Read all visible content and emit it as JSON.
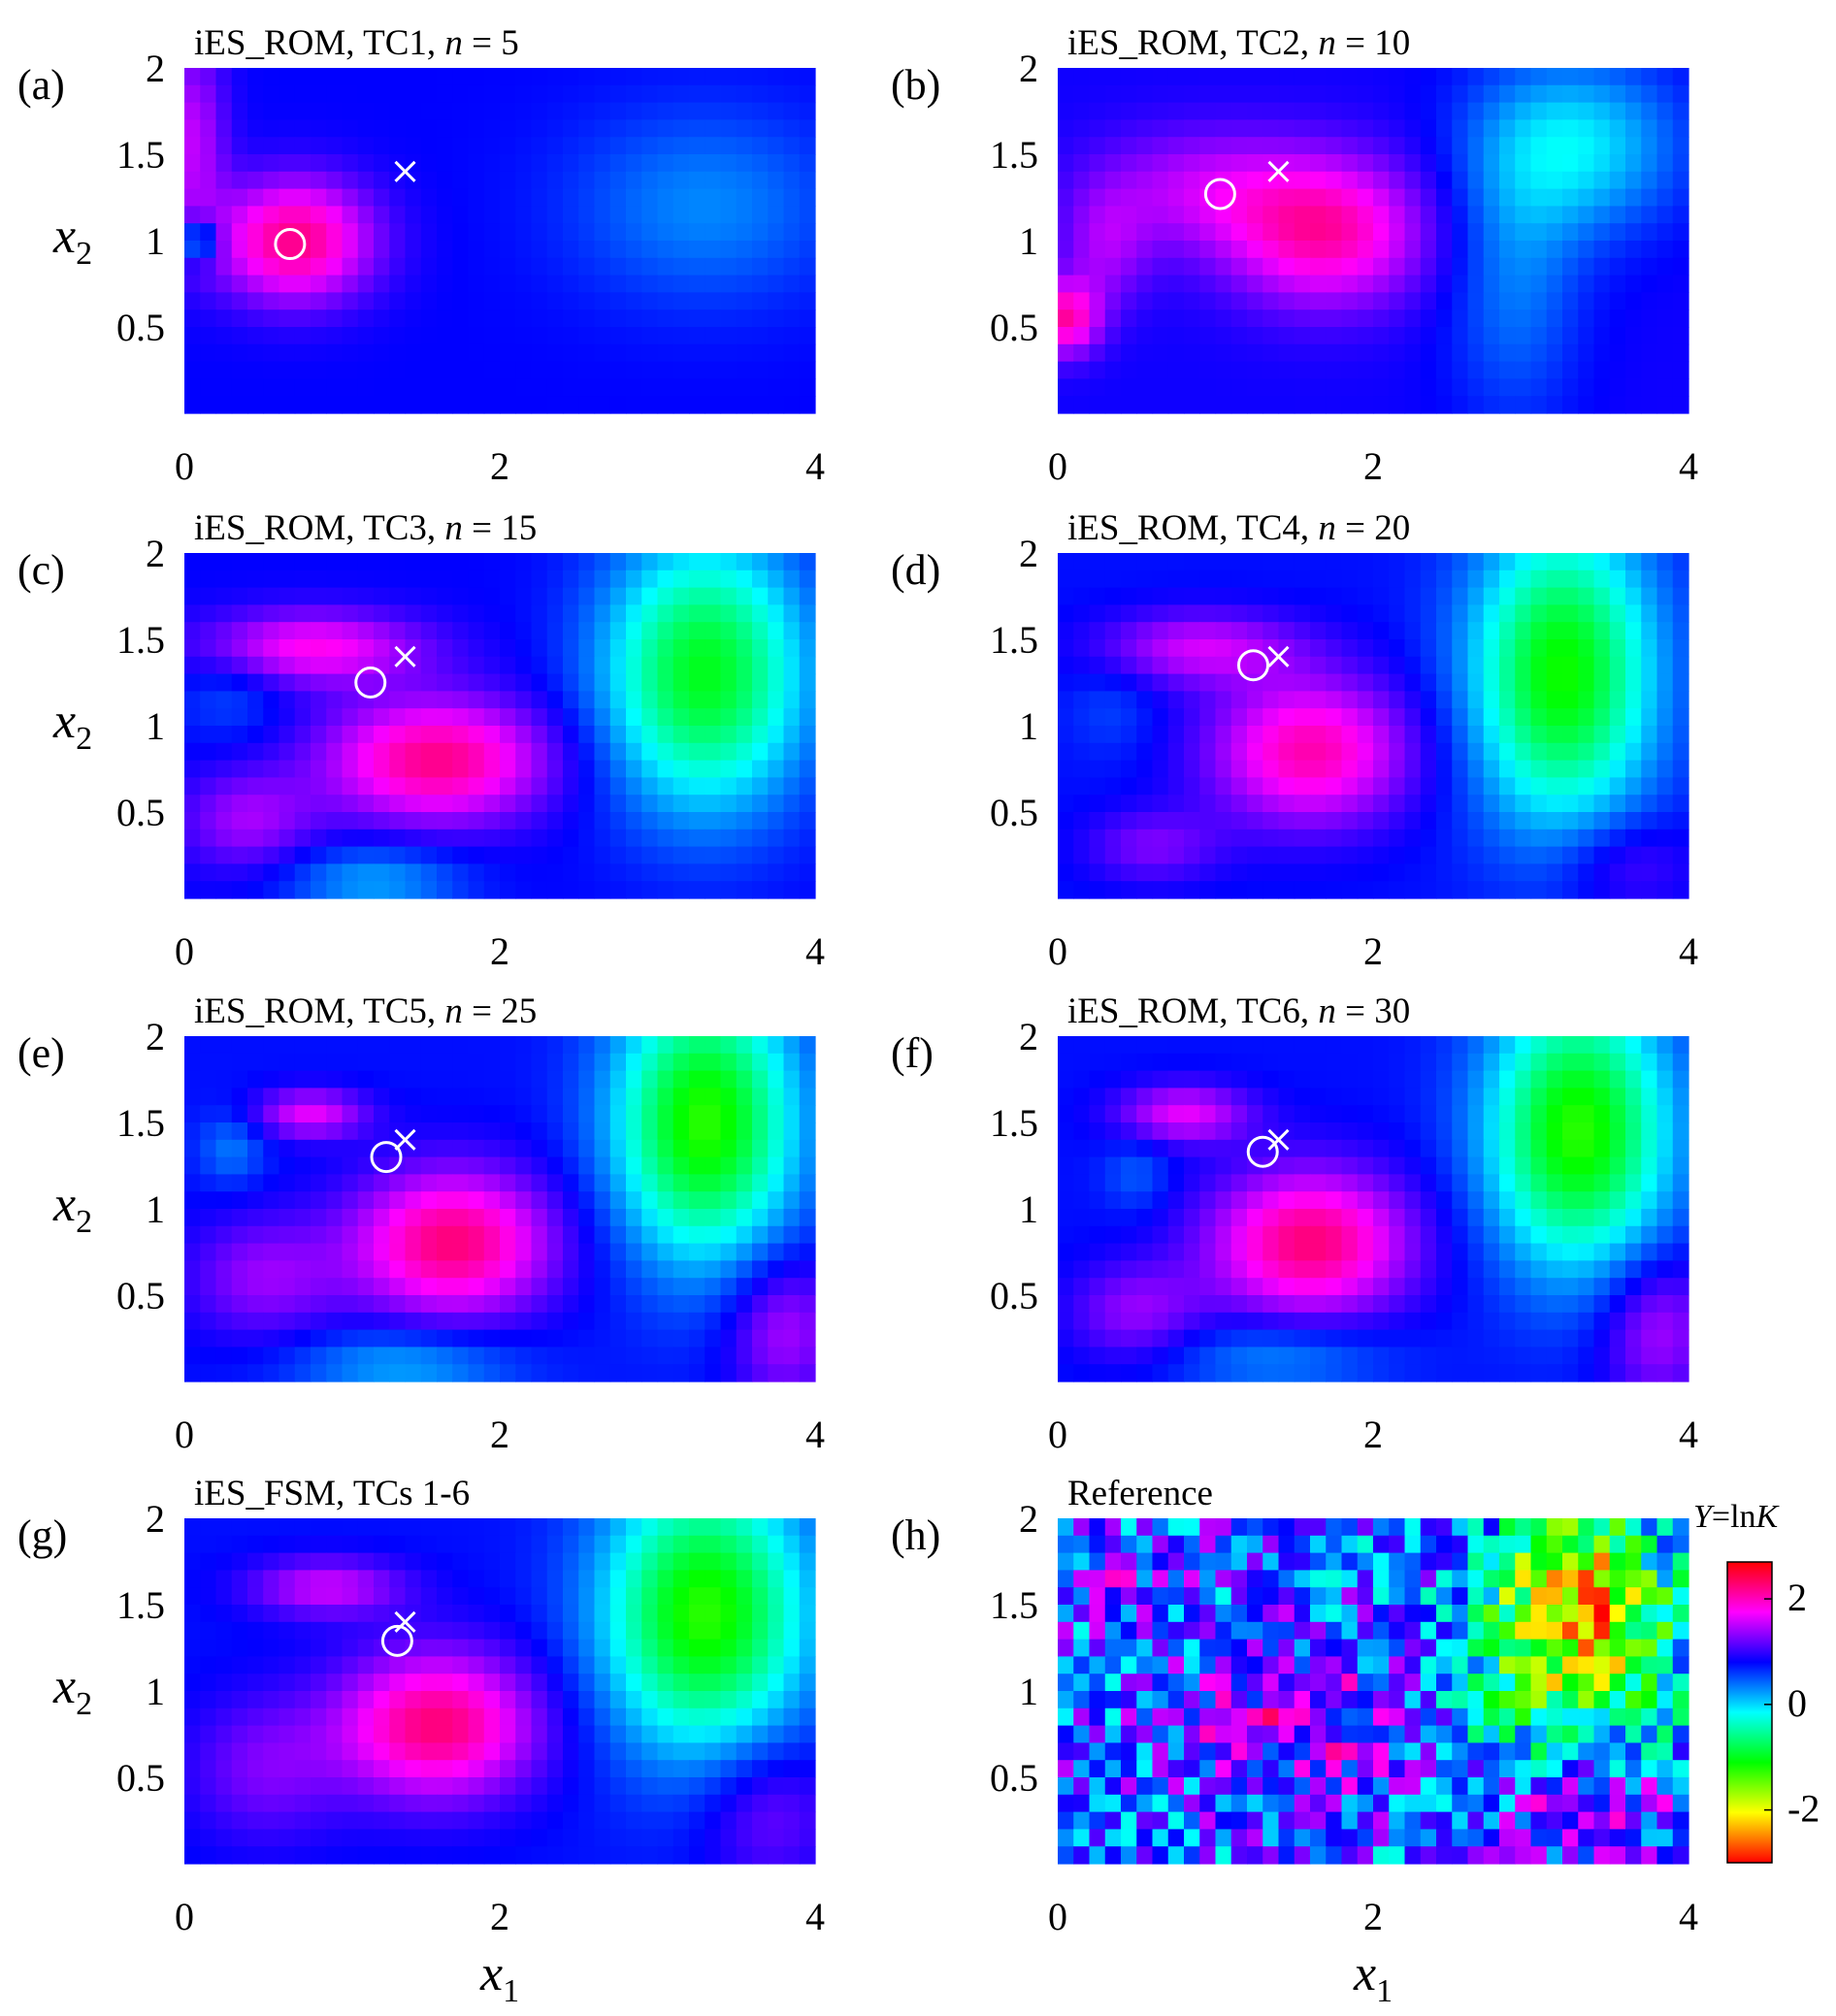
{
  "chart_data": {
    "type": "heatmap",
    "x_range": [
      0,
      4
    ],
    "y_range": [
      0,
      2
    ],
    "x_ticks": [
      0,
      2,
      4
    ],
    "y_ticks": [
      0.5,
      1,
      1.5,
      2
    ],
    "x_tick_labels": [
      "0",
      "2",
      "4"
    ],
    "y_tick_labels": [
      "0.5",
      "1",
      "1.5",
      "2"
    ],
    "xlabel": "x",
    "xlabel_sub": "1",
    "ylabel": "x",
    "ylabel_sub": "2",
    "grid": "off",
    "colorbar": {
      "title_var": "Y",
      "title_eq": "=ln",
      "title_k": "K",
      "range": [
        -3,
        2.7
      ],
      "ticks": [
        2,
        0,
        -2
      ],
      "tick_labels": [
        "2",
        "0",
        "-2"
      ],
      "colormap": [
        "#ff0000",
        "#ffff00",
        "#00ff00",
        "#00ffff",
        "#0000ff",
        "#ff00ff",
        "#ff0000"
      ]
    },
    "true_point": {
      "x1": 1.4,
      "x2": 1.4,
      "marker": "cross"
    },
    "panels": [
      {
        "label": "(a)",
        "title_pre": "iES_ROM, TC1, ",
        "title_n": "n",
        "title_post": " = 5",
        "estimate": {
          "x1": 0.67,
          "x2": 0.98
        },
        "field": "a"
      },
      {
        "label": "(b)",
        "title_pre": "iES_ROM, TC2, ",
        "title_n": "n",
        "title_post": " = 10",
        "estimate": {
          "x1": 1.03,
          "x2": 1.27
        },
        "field": "b"
      },
      {
        "label": "(c)",
        "title_pre": "iES_ROM, TC3, ",
        "title_n": "n",
        "title_post": " = 15",
        "estimate": {
          "x1": 1.18,
          "x2": 1.25
        },
        "field": "c"
      },
      {
        "label": "(d)",
        "title_pre": "iES_ROM, TC4, ",
        "title_n": "n",
        "title_post": " = 20",
        "estimate": {
          "x1": 1.24,
          "x2": 1.35
        },
        "field": "d"
      },
      {
        "label": "(e)",
        "title_pre": "iES_ROM, TC5, ",
        "title_n": "n",
        "title_post": " = 25",
        "estimate": {
          "x1": 1.28,
          "x2": 1.3
        },
        "field": "e"
      },
      {
        "label": "(f)",
        "title_pre": "iES_ROM, TC6, ",
        "title_n": "n",
        "title_post": " = 30",
        "estimate": {
          "x1": 1.3,
          "x2": 1.33
        },
        "field": "f"
      },
      {
        "label": "(g)",
        "title_pre": "iES_FSM, TCs 1-6",
        "title_n": "",
        "title_post": "",
        "estimate": {
          "x1": 1.35,
          "x2": 1.29
        },
        "field": "g"
      },
      {
        "label": "(h)",
        "title_pre": "Reference",
        "title_n": "",
        "title_post": "",
        "estimate": null,
        "field": "ref"
      }
    ],
    "fields": {
      "a": {
        "base": 0.8,
        "blobs": [
          [
            0.7,
            1.0,
            0.35,
            0.25,
            1.4
          ],
          [
            0.1,
            1.0,
            0.08,
            0.08,
            -1.0
          ],
          [
            3.3,
            1.2,
            0.6,
            0.4,
            -0.5
          ],
          [
            0.05,
            1.6,
            0.15,
            0.4,
            0.7
          ]
        ]
      },
      "b": {
        "base": 0.85,
        "blobs": [
          [
            1.7,
            1.05,
            0.45,
            0.3,
            1.2
          ],
          [
            0.9,
            1.3,
            0.5,
            0.25,
            0.6
          ],
          [
            3.3,
            1.55,
            0.45,
            0.35,
            -0.9
          ],
          [
            2.9,
            0.8,
            0.3,
            0.6,
            -0.5
          ],
          [
            0.05,
            0.55,
            0.15,
            0.15,
            1.2
          ],
          [
            0.3,
            0.95,
            0.2,
            0.25,
            0.5
          ]
        ]
      },
      "c": {
        "base": 0.8,
        "blobs": [
          [
            1.6,
            0.8,
            0.5,
            0.25,
            1.4
          ],
          [
            0.8,
            1.45,
            0.5,
            0.15,
            1.0
          ],
          [
            3.3,
            1.3,
            0.45,
            0.55,
            -1.8
          ],
          [
            0.4,
            0.45,
            0.3,
            0.2,
            0.6
          ],
          [
            0.3,
            1.2,
            0.25,
            0.2,
            -0.3
          ],
          [
            1.2,
            0.1,
            0.4,
            0.15,
            -0.6
          ]
        ]
      },
      "d": {
        "base": 0.75,
        "blobs": [
          [
            1.6,
            0.85,
            0.45,
            0.3,
            1.3
          ],
          [
            0.9,
            1.45,
            0.45,
            0.15,
            0.8
          ],
          [
            3.2,
            1.3,
            0.4,
            0.6,
            -1.9
          ],
          [
            0.6,
            0.3,
            0.3,
            0.15,
            0.5
          ],
          [
            0.35,
            1.1,
            0.2,
            0.2,
            -0.2
          ],
          [
            3.6,
            0.2,
            0.3,
            0.2,
            0.4
          ]
        ]
      },
      "e": {
        "base": 0.75,
        "blobs": [
          [
            1.7,
            0.8,
            0.45,
            0.3,
            1.5
          ],
          [
            0.8,
            1.55,
            0.25,
            0.1,
            0.9
          ],
          [
            3.3,
            1.5,
            0.4,
            0.55,
            -2.0
          ],
          [
            0.5,
            0.6,
            0.35,
            0.25,
            0.6
          ],
          [
            1.4,
            0.1,
            0.5,
            0.15,
            -0.6
          ],
          [
            3.8,
            0.3,
            0.25,
            0.3,
            0.7
          ],
          [
            0.3,
            1.35,
            0.15,
            0.15,
            -0.4
          ]
        ]
      },
      "f": {
        "base": 0.75,
        "blobs": [
          [
            1.6,
            0.8,
            0.45,
            0.3,
            1.5
          ],
          [
            0.8,
            1.55,
            0.3,
            0.12,
            0.9
          ],
          [
            3.3,
            1.45,
            0.4,
            0.55,
            -2.0
          ],
          [
            0.5,
            0.4,
            0.3,
            0.2,
            0.6
          ],
          [
            1.4,
            0.15,
            0.5,
            0.15,
            -0.5
          ],
          [
            3.8,
            0.3,
            0.25,
            0.3,
            0.7
          ],
          [
            0.5,
            1.2,
            0.15,
            0.15,
            -0.3
          ]
        ]
      },
      "g": {
        "base": 0.75,
        "blobs": [
          [
            1.6,
            0.8,
            0.45,
            0.3,
            1.5
          ],
          [
            0.9,
            1.6,
            0.35,
            0.12,
            0.8
          ],
          [
            3.3,
            1.45,
            0.45,
            0.55,
            -2.0
          ],
          [
            0.5,
            0.55,
            0.35,
            0.3,
            0.5
          ],
          [
            3.7,
            0.3,
            0.3,
            0.3,
            0.5
          ]
        ]
      },
      "ref": {
        "base": 0.6,
        "noise": 0.9,
        "seed": 7,
        "blobs": [
          [
            1.5,
            0.8,
            0.5,
            0.3,
            0.9
          ],
          [
            3.3,
            1.6,
            0.4,
            0.35,
            -2.6
          ],
          [
            3.3,
            1.0,
            0.5,
            0.35,
            -1.4
          ],
          [
            3.4,
            0.35,
            0.35,
            0.2,
            1.0
          ],
          [
            0.4,
            1.6,
            0.3,
            0.15,
            0.5
          ]
        ]
      }
    }
  }
}
